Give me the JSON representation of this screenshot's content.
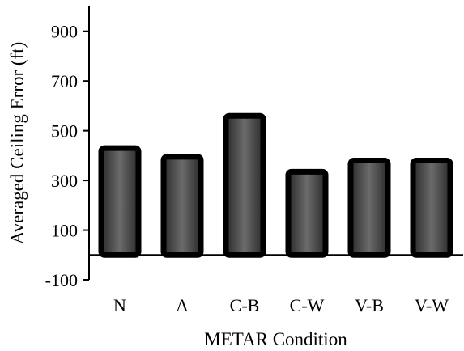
{
  "chart_data": {
    "type": "bar",
    "title": "",
    "xlabel": "METAR Condition",
    "ylabel": "Averaged Ceiling Error (ft)",
    "categories": [
      "N",
      "A",
      "C-B",
      "C-W",
      "V-B",
      "V-W"
    ],
    "values": [
      430,
      395,
      560,
      335,
      380,
      380
    ],
    "ylim": [
      -100,
      1000
    ],
    "yticks": [
      -100,
      100,
      300,
      500,
      700,
      900
    ],
    "grid": false,
    "legend": "none",
    "colors": {
      "bar_fill_light": "#6b6b6b",
      "bar_fill_dark": "#2a2a2a",
      "bar_border": "#000000",
      "axis": "#000000"
    }
  }
}
